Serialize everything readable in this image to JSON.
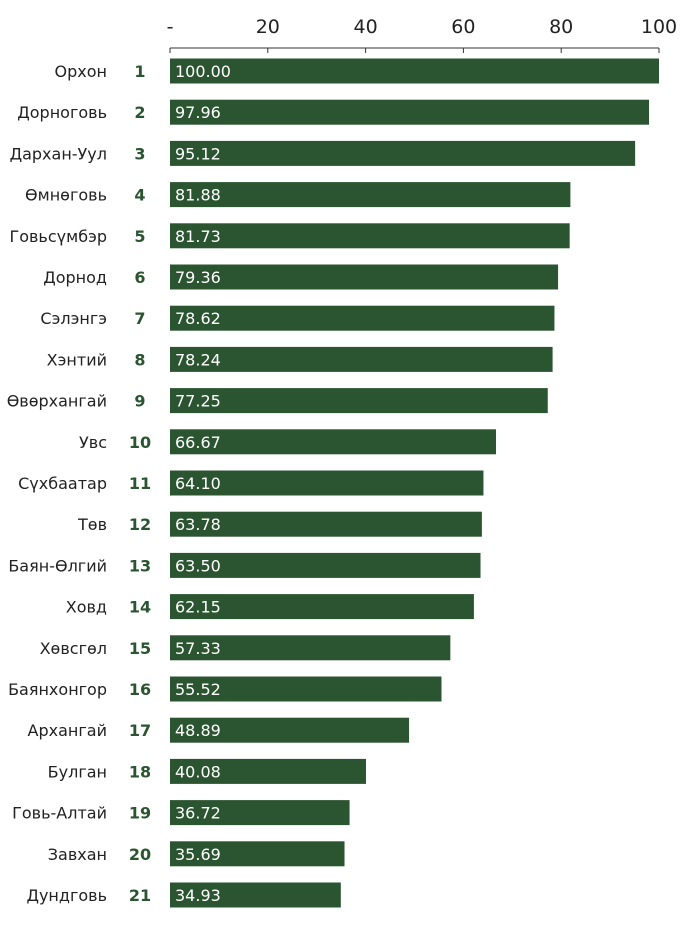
{
  "colors": {
    "bar": "#2b5530",
    "rank": "#2b5530",
    "axis": "#333333"
  },
  "chart_data": {
    "type": "bar",
    "orientation": "horizontal",
    "xlim": [
      0,
      100
    ],
    "x_ticks": [
      {
        "value": 0,
        "label": "-"
      },
      {
        "value": 20,
        "label": "20"
      },
      {
        "value": 40,
        "label": "40"
      },
      {
        "value": 60,
        "label": "60"
      },
      {
        "value": 80,
        "label": "80"
      },
      {
        "value": 100,
        "label": "100"
      }
    ],
    "axis_position": "top",
    "grid": false,
    "categories": [
      "Орхон",
      "Дорноговь",
      "Дархан-Уул",
      "Өмнөговь",
      "Говьсүмбэр",
      "Дорнод",
      "Сэлэнгэ",
      "Хэнтий",
      "Өвөрхангай",
      "Увс",
      "Сүхбаатар",
      "Төв",
      "Баян-Өлгий",
      "Ховд",
      "Хөвсгөл",
      "Баянхонгор",
      "Архангай",
      "Булган",
      "Говь-Алтай",
      "Завхан",
      "Дундговь"
    ],
    "ranks": [
      "1",
      "2",
      "3",
      "4",
      "5",
      "6",
      "7",
      "8",
      "9",
      "10",
      "11",
      "12",
      "13",
      "14",
      "15",
      "16",
      "17",
      "18",
      "19",
      "20",
      "21"
    ],
    "values": [
      100.0,
      97.96,
      95.12,
      81.88,
      81.73,
      79.36,
      78.62,
      78.24,
      77.25,
      66.67,
      64.1,
      63.78,
      63.5,
      62.15,
      57.33,
      55.52,
      48.89,
      40.08,
      36.72,
      35.69,
      34.93
    ],
    "value_labels": [
      "100.00",
      "97.96",
      "95.12",
      "81.88",
      "81.73",
      "79.36",
      "78.62",
      "78.24",
      "77.25",
      "66.67",
      "64.10",
      "63.78",
      "63.50",
      "62.15",
      "57.33",
      "55.52",
      "48.89",
      "40.08",
      "36.72",
      "35.69",
      "34.93"
    ]
  }
}
